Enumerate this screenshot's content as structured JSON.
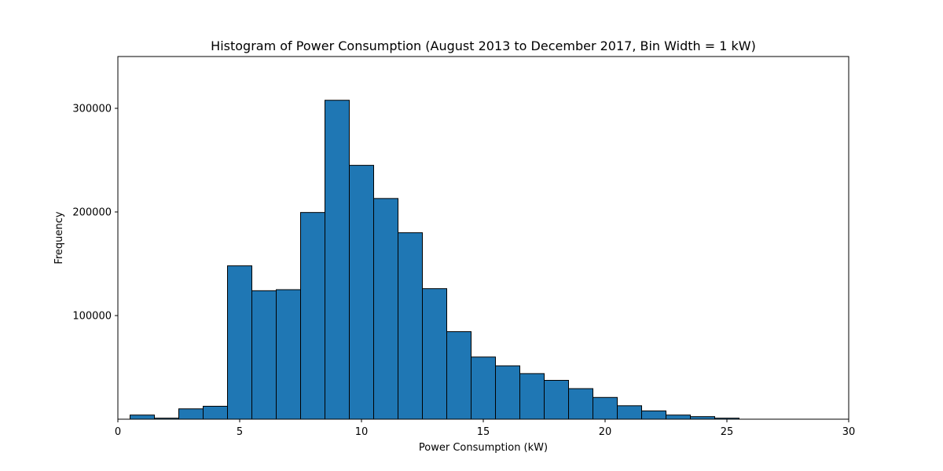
{
  "chart_data": {
    "type": "bar",
    "title": "Histogram of Power Consumption (August 2013 to December 2017, Bin Width = 1 kW)",
    "xlabel": "Power Consumption (kW)",
    "ylabel": "Frequency",
    "xlim": [
      0,
      30
    ],
    "ylim": [
      0,
      350000
    ],
    "bin_width": 1,
    "x_ticks": [
      "0",
      "5",
      "10",
      "15",
      "20",
      "25",
      "30"
    ],
    "y_ticks": [
      "100000",
      "200000",
      "300000"
    ],
    "grid": false,
    "bar_color": "#1f77b4",
    "edge_color": "#000000",
    "bins": [
      {
        "x": 1,
        "value": 4000
      },
      {
        "x": 2,
        "value": 1000
      },
      {
        "x": 3,
        "value": 10000
      },
      {
        "x": 4,
        "value": 12500
      },
      {
        "x": 5,
        "value": 148000
      },
      {
        "x": 6,
        "value": 124000
      },
      {
        "x": 7,
        "value": 125000
      },
      {
        "x": 8,
        "value": 199500
      },
      {
        "x": 9,
        "value": 307800
      },
      {
        "x": 10,
        "value": 245000
      },
      {
        "x": 11,
        "value": 213000
      },
      {
        "x": 12,
        "value": 180000
      },
      {
        "x": 13,
        "value": 126000
      },
      {
        "x": 14,
        "value": 84500
      },
      {
        "x": 15,
        "value": 60000
      },
      {
        "x": 16,
        "value": 51500
      },
      {
        "x": 17,
        "value": 44000
      },
      {
        "x": 18,
        "value": 37500
      },
      {
        "x": 19,
        "value": 29500
      },
      {
        "x": 20,
        "value": 21000
      },
      {
        "x": 21,
        "value": 13000
      },
      {
        "x": 22,
        "value": 8000
      },
      {
        "x": 23,
        "value": 4000
      },
      {
        "x": 24,
        "value": 2500
      },
      {
        "x": 25,
        "value": 1000
      }
    ]
  }
}
